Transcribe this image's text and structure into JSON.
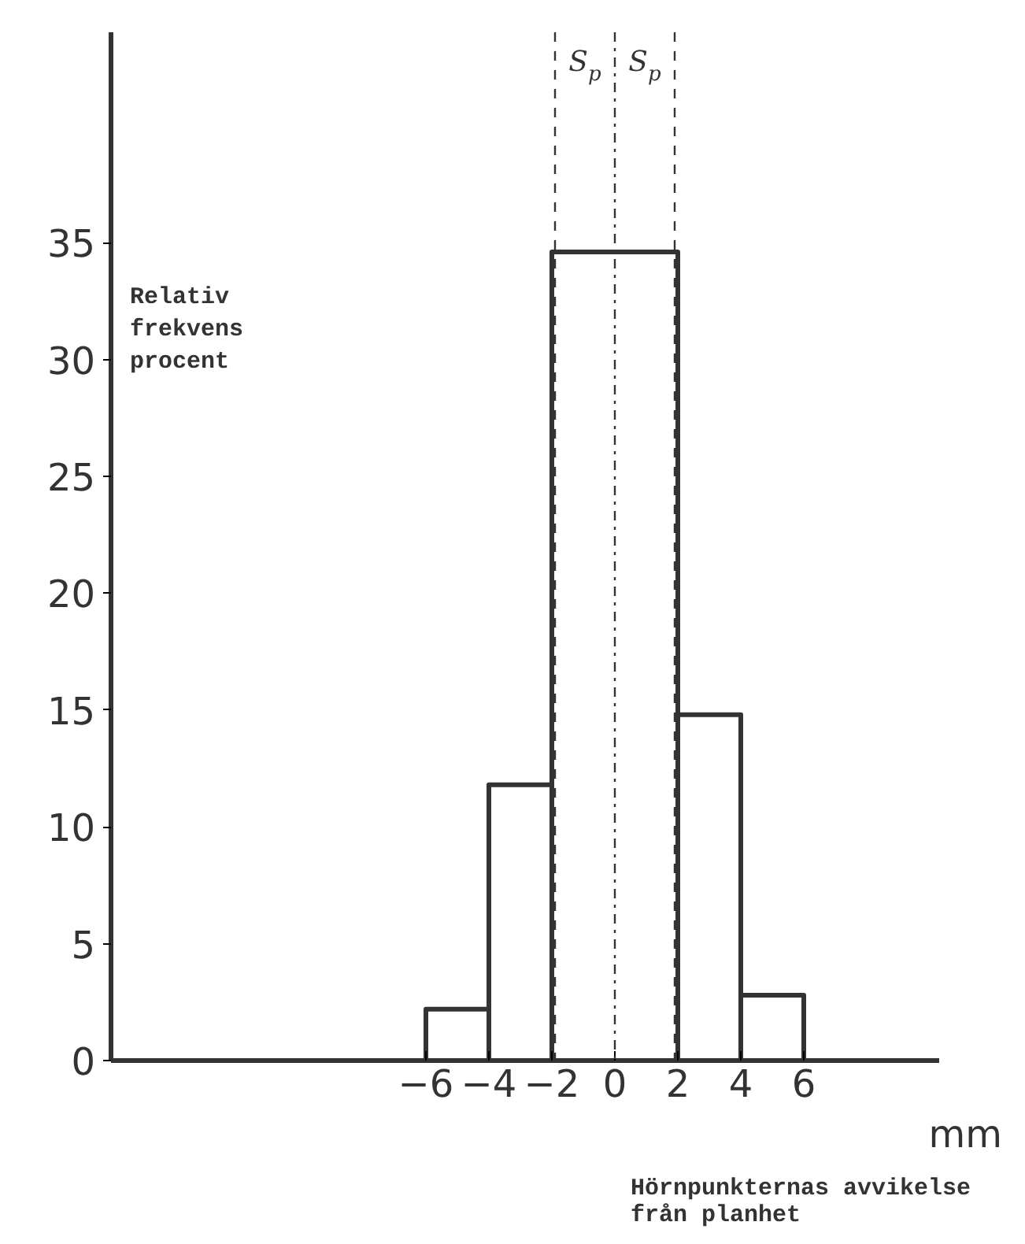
{
  "chart_data": {
    "type": "histogram",
    "ylabel": "Relativ\nfrekvens\nprocent",
    "xlabel": "Hörnpunkternas avvikelse\nfrån planhet",
    "bins": [
      -6,
      -4,
      -2,
      2,
      4,
      6
    ],
    "values": [
      2.2,
      11.8,
      34.6,
      14.8,
      2.8
    ],
    "color": "#333333",
    "xlim": [
      -16,
      10.3
    ],
    "ylim": [
      0,
      44
    ],
    "xticks": [
      -6,
      -4,
      -2,
      0,
      2,
      4,
      6
    ],
    "yticks": [
      0,
      5,
      10,
      15,
      20,
      25,
      30,
      35
    ],
    "grid": false,
    "ref_lines": [
      {
        "axis": "x",
        "value": -1.9,
        "label": null,
        "line_style": "dashed",
        "color": "#333333"
      },
      {
        "axis": "x",
        "value": 0,
        "label": null,
        "line_style": "dotted",
        "color": "#333333"
      },
      {
        "axis": "x",
        "value": 1.9,
        "label": null,
        "line_style": "dashed",
        "color": "#333333"
      }
    ],
    "annotations": [
      "S$_{p}$",
      "S$_{p}$",
      "mm"
    ]
  }
}
